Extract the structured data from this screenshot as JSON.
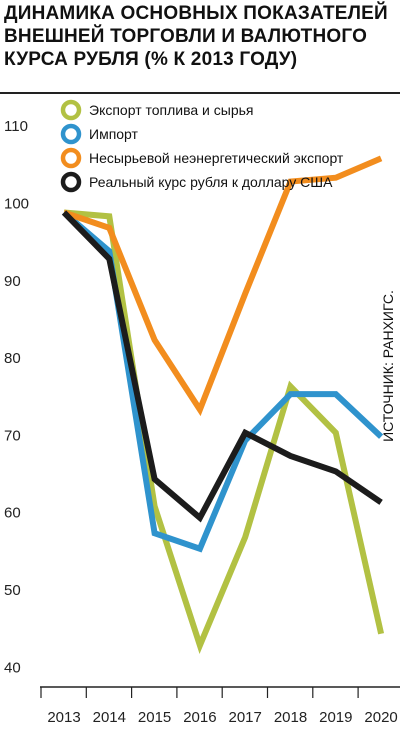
{
  "chart_data": {
    "type": "line",
    "title": "ДИНАМИКА ОСНОВНЫХ ПОКАЗАТЕЛЕЙ\nВНЕШНЕЙ ТОРГОВЛИ И ВАЛЮТНОГО\nКУРСА РУБЛЯ (% К 2013 ГОДУ)",
    "source": "ИСТОЧНИК: РАНХИГС.",
    "x": [
      "2013",
      "2014",
      "2015",
      "2016",
      "2017",
      "2018",
      "2019",
      "2020"
    ],
    "y_ticks": [
      40,
      50,
      60,
      70,
      80,
      90,
      100,
      110
    ],
    "ylim": [
      39,
      113
    ],
    "grid": false,
    "legend_position": "top",
    "series": [
      {
        "name": "Экспорт топлива и сырья",
        "color": "#b2c143",
        "values": [
          100,
          99.5,
          62,
          44,
          58,
          77.5,
          71.5,
          45.5
        ]
      },
      {
        "name": "Импорт",
        "color": "#2f93cd",
        "values": [
          100,
          95,
          58.5,
          56.5,
          70.5,
          76.5,
          76.5,
          71
        ]
      },
      {
        "name": "Несырьевой неэнергетический экспорт",
        "color": "#f28d1e",
        "values": [
          100,
          98,
          83.5,
          74.5,
          89.5,
          104,
          104.5,
          107
        ]
      },
      {
        "name": "Реальный курс рубля к доллару США",
        "color": "#1c1c1c",
        "values": [
          100,
          94,
          65.5,
          60.5,
          71.5,
          68.5,
          66.5,
          62.5
        ]
      }
    ]
  }
}
